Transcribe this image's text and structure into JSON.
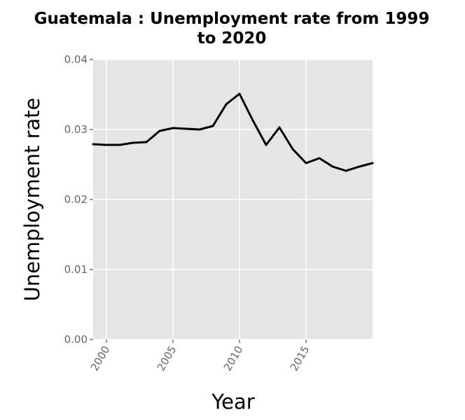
{
  "chart_data": {
    "type": "line",
    "title_line1": "Guatemala : Unemployment rate from 1999",
    "title_line2": "to 2020",
    "xlabel": "Year",
    "ylabel": "Unemployment rate",
    "xlim": [
      1999,
      2020
    ],
    "ylim": [
      0,
      0.04
    ],
    "x_ticks": [
      2000,
      2005,
      2010,
      2015
    ],
    "x_tick_labels": [
      "2000",
      "2005",
      "2010",
      "2015"
    ],
    "y_ticks": [
      0,
      0.01,
      0.02,
      0.03,
      0.04
    ],
    "y_tick_labels": [
      "0.00",
      "0.01",
      "0.02",
      "0.03",
      "0.04"
    ],
    "grid": true,
    "background_color": "#e5e5e5",
    "line_color": "#000000",
    "series": [
      {
        "x": [
          1999,
          2000,
          2001,
          2002,
          2003,
          2004,
          2005,
          2006,
          2007,
          2008,
          2009,
          2010,
          2011,
          2012,
          2013,
          2014,
          2015,
          2016,
          2017,
          2018,
          2019,
          2020
        ],
        "values": [
          0.0279,
          0.0278,
          0.0278,
          0.0281,
          0.0282,
          0.0298,
          0.0302,
          0.0301,
          0.03,
          0.0305,
          0.0336,
          0.0351,
          0.0313,
          0.0278,
          0.0303,
          0.0272,
          0.0252,
          0.0259,
          0.0247,
          0.0241,
          0.0247,
          0.0252
        ]
      }
    ]
  }
}
